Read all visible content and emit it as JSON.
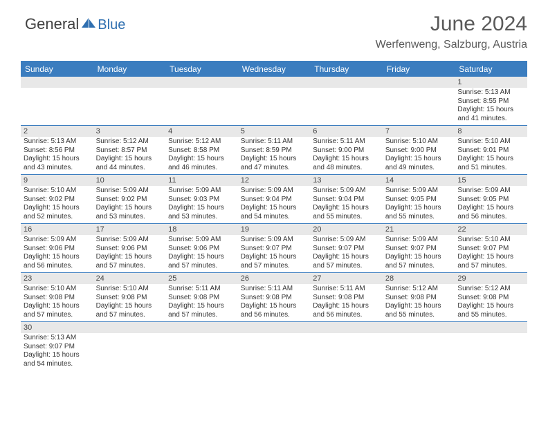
{
  "logo": {
    "part1": "General",
    "part2": "Blue"
  },
  "title": "June 2024",
  "location": "Werfenweng, Salzburg, Austria",
  "colors": {
    "header_bg": "#3b7dbf",
    "header_text": "#ffffff",
    "daynum_bg": "#e8e8e8",
    "border": "#3b7dbf",
    "text": "#333333",
    "title": "#5a5a5a",
    "logo_gray": "#404040",
    "logo_blue": "#2f6fb0"
  },
  "typography": {
    "title_fontsize": 30,
    "location_fontsize": 16,
    "dayheader_fontsize": 12,
    "daynum_fontsize": 11,
    "detail_fontsize": 10
  },
  "day_labels": [
    "Sunday",
    "Monday",
    "Tuesday",
    "Wednesday",
    "Thursday",
    "Friday",
    "Saturday"
  ],
  "weeks": [
    [
      null,
      null,
      null,
      null,
      null,
      null,
      {
        "n": "1",
        "sunrise": "Sunrise: 5:13 AM",
        "sunset": "Sunset: 8:55 PM",
        "daylight": "Daylight: 15 hours and 41 minutes."
      }
    ],
    [
      {
        "n": "2",
        "sunrise": "Sunrise: 5:13 AM",
        "sunset": "Sunset: 8:56 PM",
        "daylight": "Daylight: 15 hours and 43 minutes."
      },
      {
        "n": "3",
        "sunrise": "Sunrise: 5:12 AM",
        "sunset": "Sunset: 8:57 PM",
        "daylight": "Daylight: 15 hours and 44 minutes."
      },
      {
        "n": "4",
        "sunrise": "Sunrise: 5:12 AM",
        "sunset": "Sunset: 8:58 PM",
        "daylight": "Daylight: 15 hours and 46 minutes."
      },
      {
        "n": "5",
        "sunrise": "Sunrise: 5:11 AM",
        "sunset": "Sunset: 8:59 PM",
        "daylight": "Daylight: 15 hours and 47 minutes."
      },
      {
        "n": "6",
        "sunrise": "Sunrise: 5:11 AM",
        "sunset": "Sunset: 9:00 PM",
        "daylight": "Daylight: 15 hours and 48 minutes."
      },
      {
        "n": "7",
        "sunrise": "Sunrise: 5:10 AM",
        "sunset": "Sunset: 9:00 PM",
        "daylight": "Daylight: 15 hours and 49 minutes."
      },
      {
        "n": "8",
        "sunrise": "Sunrise: 5:10 AM",
        "sunset": "Sunset: 9:01 PM",
        "daylight": "Daylight: 15 hours and 51 minutes."
      }
    ],
    [
      {
        "n": "9",
        "sunrise": "Sunrise: 5:10 AM",
        "sunset": "Sunset: 9:02 PM",
        "daylight": "Daylight: 15 hours and 52 minutes."
      },
      {
        "n": "10",
        "sunrise": "Sunrise: 5:09 AM",
        "sunset": "Sunset: 9:02 PM",
        "daylight": "Daylight: 15 hours and 53 minutes."
      },
      {
        "n": "11",
        "sunrise": "Sunrise: 5:09 AM",
        "sunset": "Sunset: 9:03 PM",
        "daylight": "Daylight: 15 hours and 53 minutes."
      },
      {
        "n": "12",
        "sunrise": "Sunrise: 5:09 AM",
        "sunset": "Sunset: 9:04 PM",
        "daylight": "Daylight: 15 hours and 54 minutes."
      },
      {
        "n": "13",
        "sunrise": "Sunrise: 5:09 AM",
        "sunset": "Sunset: 9:04 PM",
        "daylight": "Daylight: 15 hours and 55 minutes."
      },
      {
        "n": "14",
        "sunrise": "Sunrise: 5:09 AM",
        "sunset": "Sunset: 9:05 PM",
        "daylight": "Daylight: 15 hours and 55 minutes."
      },
      {
        "n": "15",
        "sunrise": "Sunrise: 5:09 AM",
        "sunset": "Sunset: 9:05 PM",
        "daylight": "Daylight: 15 hours and 56 minutes."
      }
    ],
    [
      {
        "n": "16",
        "sunrise": "Sunrise: 5:09 AM",
        "sunset": "Sunset: 9:06 PM",
        "daylight": "Daylight: 15 hours and 56 minutes."
      },
      {
        "n": "17",
        "sunrise": "Sunrise: 5:09 AM",
        "sunset": "Sunset: 9:06 PM",
        "daylight": "Daylight: 15 hours and 57 minutes."
      },
      {
        "n": "18",
        "sunrise": "Sunrise: 5:09 AM",
        "sunset": "Sunset: 9:06 PM",
        "daylight": "Daylight: 15 hours and 57 minutes."
      },
      {
        "n": "19",
        "sunrise": "Sunrise: 5:09 AM",
        "sunset": "Sunset: 9:07 PM",
        "daylight": "Daylight: 15 hours and 57 minutes."
      },
      {
        "n": "20",
        "sunrise": "Sunrise: 5:09 AM",
        "sunset": "Sunset: 9:07 PM",
        "daylight": "Daylight: 15 hours and 57 minutes."
      },
      {
        "n": "21",
        "sunrise": "Sunrise: 5:09 AM",
        "sunset": "Sunset: 9:07 PM",
        "daylight": "Daylight: 15 hours and 57 minutes."
      },
      {
        "n": "22",
        "sunrise": "Sunrise: 5:10 AM",
        "sunset": "Sunset: 9:07 PM",
        "daylight": "Daylight: 15 hours and 57 minutes."
      }
    ],
    [
      {
        "n": "23",
        "sunrise": "Sunrise: 5:10 AM",
        "sunset": "Sunset: 9:08 PM",
        "daylight": "Daylight: 15 hours and 57 minutes."
      },
      {
        "n": "24",
        "sunrise": "Sunrise: 5:10 AM",
        "sunset": "Sunset: 9:08 PM",
        "daylight": "Daylight: 15 hours and 57 minutes."
      },
      {
        "n": "25",
        "sunrise": "Sunrise: 5:11 AM",
        "sunset": "Sunset: 9:08 PM",
        "daylight": "Daylight: 15 hours and 57 minutes."
      },
      {
        "n": "26",
        "sunrise": "Sunrise: 5:11 AM",
        "sunset": "Sunset: 9:08 PM",
        "daylight": "Daylight: 15 hours and 56 minutes."
      },
      {
        "n": "27",
        "sunrise": "Sunrise: 5:11 AM",
        "sunset": "Sunset: 9:08 PM",
        "daylight": "Daylight: 15 hours and 56 minutes."
      },
      {
        "n": "28",
        "sunrise": "Sunrise: 5:12 AM",
        "sunset": "Sunset: 9:08 PM",
        "daylight": "Daylight: 15 hours and 55 minutes."
      },
      {
        "n": "29",
        "sunrise": "Sunrise: 5:12 AM",
        "sunset": "Sunset: 9:08 PM",
        "daylight": "Daylight: 15 hours and 55 minutes."
      }
    ],
    [
      {
        "n": "30",
        "sunrise": "Sunrise: 5:13 AM",
        "sunset": "Sunset: 9:07 PM",
        "daylight": "Daylight: 15 hours and 54 minutes."
      },
      null,
      null,
      null,
      null,
      null,
      null
    ]
  ]
}
